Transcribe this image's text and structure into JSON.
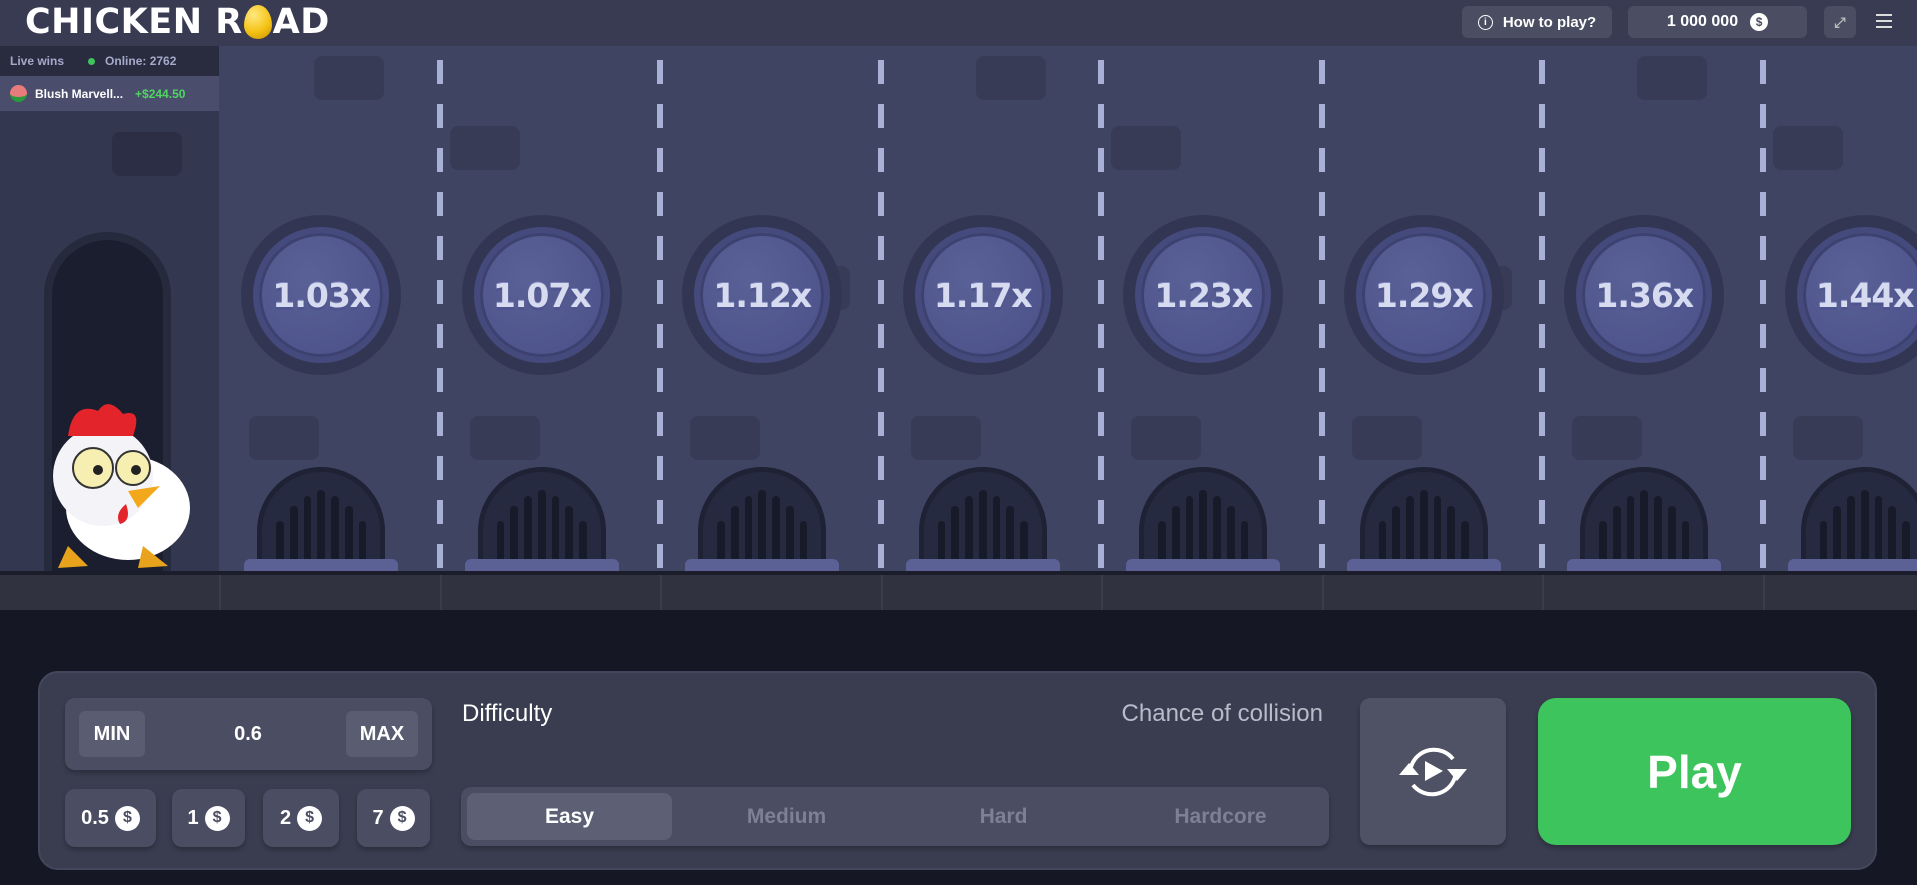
{
  "header": {
    "logo_text_left": "CHICKEN R",
    "logo_text_right": "AD",
    "how_to_play": "How to play?",
    "balance": "1 000 000",
    "currency_icon": "dollar-coin-icon"
  },
  "live_wins": {
    "title": "Live wins",
    "online": "Online: 2762",
    "entries": [
      {
        "name": "Blush Marvell...",
        "amount": "+$244.50"
      }
    ]
  },
  "lanes": [
    {
      "multiplier": "1.03x"
    },
    {
      "multiplier": "1.07x"
    },
    {
      "multiplier": "1.12x"
    },
    {
      "multiplier": "1.17x"
    },
    {
      "multiplier": "1.23x"
    },
    {
      "multiplier": "1.29x"
    },
    {
      "multiplier": "1.36x"
    },
    {
      "multiplier": "1.44x"
    }
  ],
  "controls": {
    "min": "MIN",
    "max": "MAX",
    "bet": "0.6",
    "chips": [
      "0.5",
      "1",
      "2",
      "7"
    ],
    "difficulty_label": "Difficulty",
    "chance_label": "Chance of collision",
    "difficulties": [
      "Easy",
      "Medium",
      "Hard",
      "Hardcore"
    ],
    "selected_difficulty": "Easy",
    "play": "Play"
  },
  "colors": {
    "play": "#3ec45c",
    "win": "#4fd660",
    "online_dot": "#3ec45c"
  }
}
